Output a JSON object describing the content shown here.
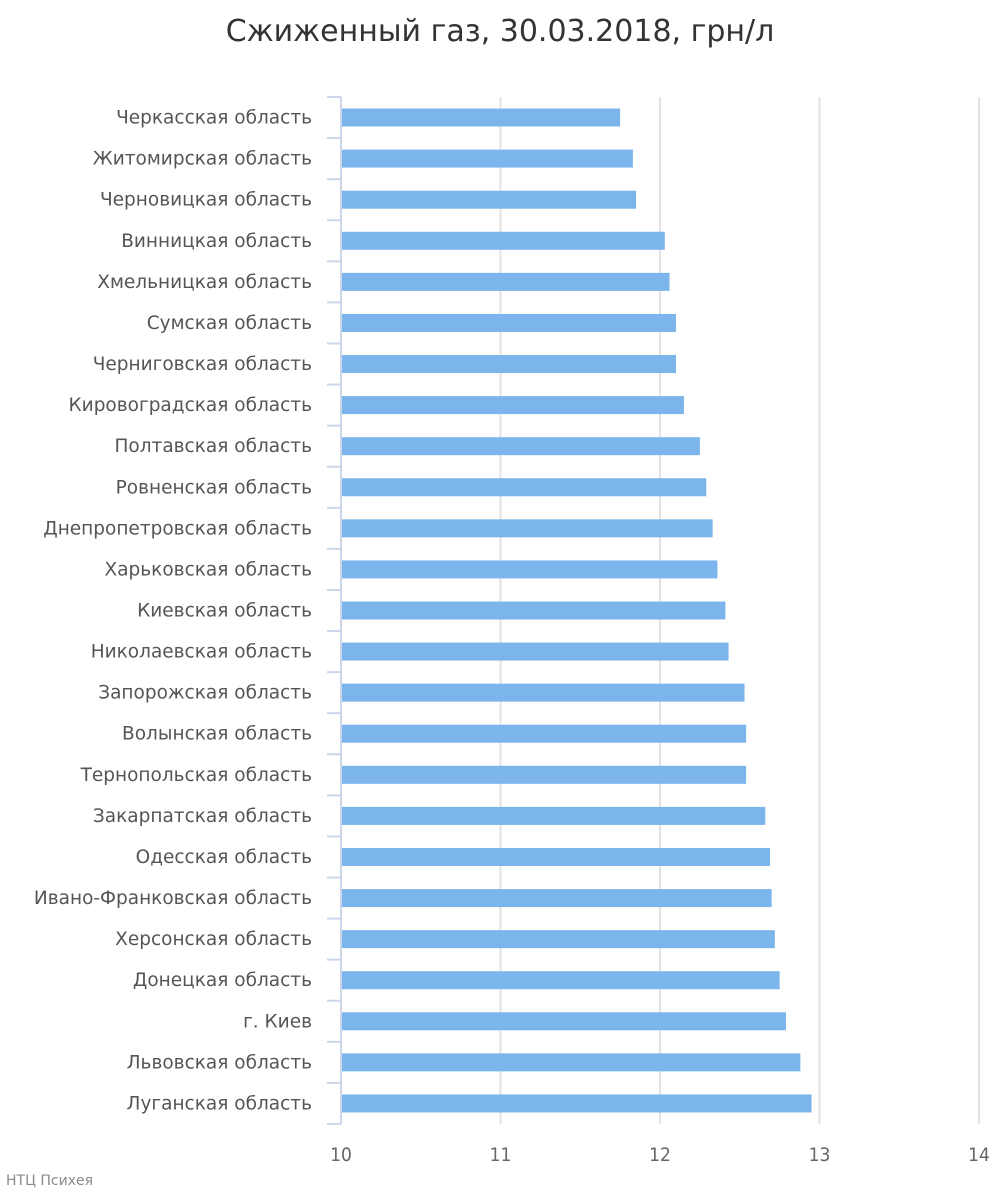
{
  "chart_data": {
    "type": "bar",
    "orientation": "horizontal",
    "title": "Сжиженный газ, 30.03.2018, грн/л",
    "xlim": [
      10,
      14
    ],
    "xticks": [
      "10",
      "11",
      "12",
      "13",
      "14"
    ],
    "grid": true,
    "bar_color": "#7cb5ec",
    "categories": [
      "Черкасская область",
      "Житомирская область",
      "Черновицкая область",
      "Винницкая область",
      "Хмельницкая область",
      "Сумская область",
      "Черниговская область",
      "Кировоградская область",
      "Полтавская область",
      "Ровненская область",
      "Днепропетровская область",
      "Харьковская область",
      "Киевская область",
      "Николаевская область",
      "Запорожская область",
      "Волынская область",
      "Тернопольская область",
      "Закарпатская область",
      "Одесская область",
      "Ивано-Франковская область",
      "Херсонская область",
      "Донецкая область",
      "г. Киев",
      "Львовская область",
      "Луганская область"
    ],
    "values": [
      11.75,
      11.83,
      11.85,
      12.03,
      12.06,
      12.1,
      12.1,
      12.15,
      12.25,
      12.29,
      12.33,
      12.36,
      12.41,
      12.43,
      12.53,
      12.54,
      12.54,
      12.66,
      12.69,
      12.7,
      12.72,
      12.75,
      12.79,
      12.88,
      12.95
    ]
  },
  "credit": "НТЦ Психея"
}
